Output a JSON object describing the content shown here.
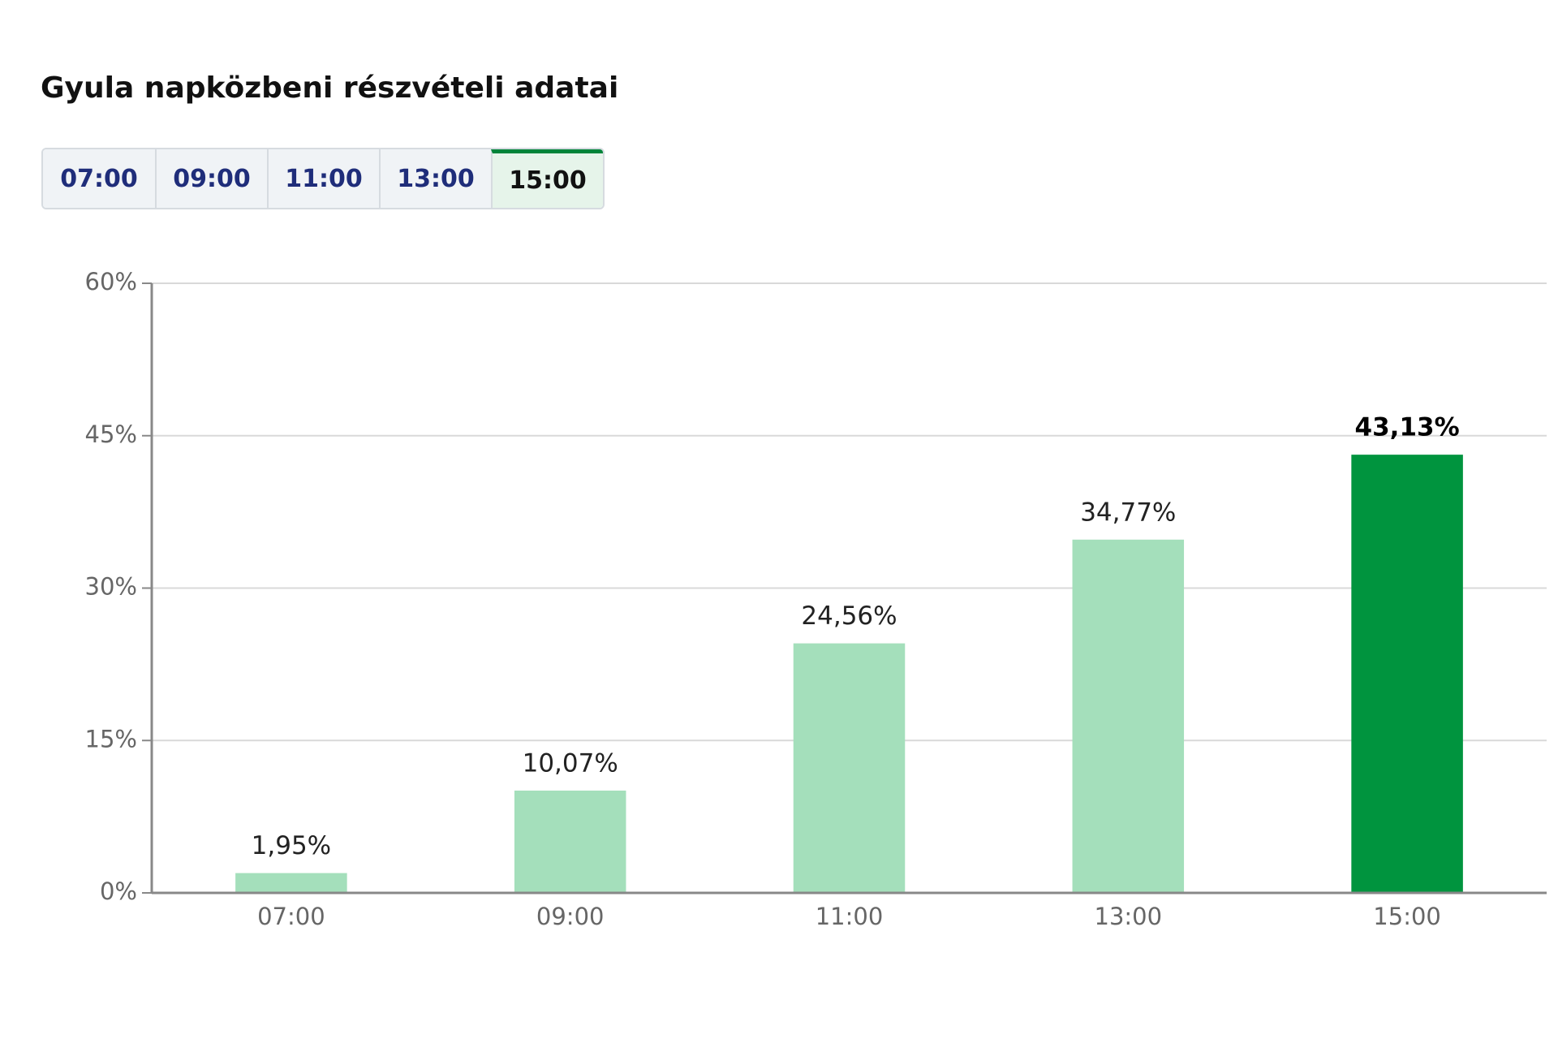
{
  "header": {
    "title": "Gyula napközbeni részvételi adatai"
  },
  "tabs": {
    "items": [
      "07:00",
      "09:00",
      "11:00",
      "13:00",
      "15:00"
    ],
    "active": 4
  },
  "chart_data": {
    "type": "bar",
    "categories": [
      "07:00",
      "09:00",
      "11:00",
      "13:00",
      "15:00"
    ],
    "values": [
      1.95,
      10.07,
      24.56,
      34.77,
      43.13
    ],
    "value_labels": [
      "1,95%",
      "10,07%",
      "24,56%",
      "34,77%",
      "43,13%"
    ],
    "colors": [
      "#a4dfbb",
      "#a4dfbb",
      "#a4dfbb",
      "#a4dfbb",
      "#00943e"
    ],
    "ylim": [
      0,
      60
    ],
    "yticks": [
      {
        "value": 0,
        "label": "0%"
      },
      {
        "value": 15,
        "label": "15%"
      },
      {
        "value": 30,
        "label": "30%"
      },
      {
        "value": 45,
        "label": "45%"
      },
      {
        "value": 60,
        "label": "60%"
      }
    ],
    "grid": true
  }
}
